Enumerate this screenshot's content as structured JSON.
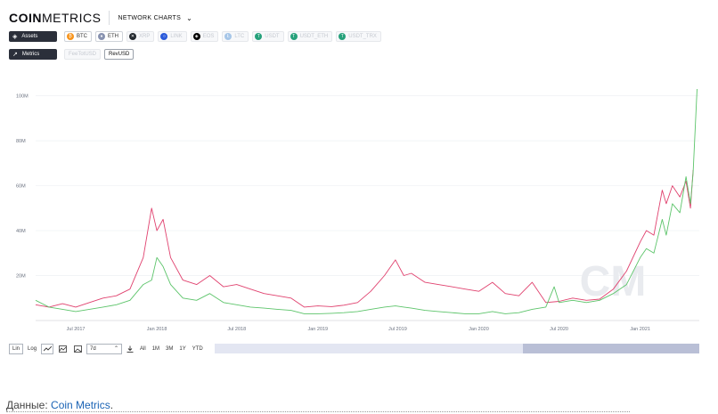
{
  "header": {
    "logo_bold": "COIN",
    "logo_rest": "METRICS",
    "nav_label": "NETWORK CHARTS"
  },
  "assets": {
    "label": "Assets",
    "items": [
      {
        "label": "BTC",
        "color": "#f7931a",
        "glyph": "₿",
        "enabled": true
      },
      {
        "label": "ETH",
        "color": "#8892b0",
        "glyph": "♦",
        "enabled": true
      },
      {
        "label": "XRP",
        "color": "#23292f",
        "glyph": "✕",
        "enabled": false
      },
      {
        "label": "LINK",
        "color": "#2a5ada",
        "glyph": "○",
        "enabled": false
      },
      {
        "label": "EOS",
        "color": "#000000",
        "glyph": "◈",
        "enabled": false
      },
      {
        "label": "LTC",
        "color": "#a6c6e8",
        "glyph": "Ł",
        "enabled": false
      },
      {
        "label": "USDT",
        "color": "#26a17b",
        "glyph": "T",
        "enabled": false
      },
      {
        "label": "USDT_ETH",
        "color": "#26a17b",
        "glyph": "T",
        "enabled": false
      },
      {
        "label": "USDT_TRX",
        "color": "#26a17b",
        "glyph": "T",
        "enabled": false
      }
    ]
  },
  "metrics": {
    "label": "Metrics",
    "items": [
      {
        "label": "FeeTotUSD",
        "enabled": false
      },
      {
        "label": "RevUSD",
        "enabled": true
      }
    ]
  },
  "toolbar": {
    "scale_lin": "Lin",
    "scale_log": "Log",
    "ma_value": "7d",
    "ranges": [
      "All",
      "1M",
      "3M",
      "1Y",
      "YTD"
    ]
  },
  "footer": {
    "prefix": "Данные: ",
    "link": "Coin Metrics",
    "suffix": "."
  },
  "chart_data": {
    "type": "line",
    "x_type": "date",
    "x_range": [
      "2017-04-01",
      "2021-05-15"
    ],
    "ylim": [
      0,
      105000000
    ],
    "yticks": [
      20000000,
      40000000,
      60000000,
      80000000,
      100000000
    ],
    "ytick_labels": [
      "20M",
      "40M",
      "60M",
      "80M",
      "100M"
    ],
    "xticks": [
      "2017-07-01",
      "2018-01-01",
      "2018-07-01",
      "2019-01-01",
      "2019-07-01",
      "2020-01-01",
      "2020-07-01",
      "2021-01-01"
    ],
    "xtick_labels": [
      "Jul 2017",
      "Jan 2018",
      "Jul 2018",
      "Jan 2019",
      "Jul 2019",
      "Jan 2020",
      "Jul 2020",
      "Jan 2021"
    ],
    "series": [
      {
        "color": "#e0416e",
        "points": [
          [
            "2017-04-01",
            7000000
          ],
          [
            "2017-05-01",
            6000000
          ],
          [
            "2017-06-01",
            7500000
          ],
          [
            "2017-07-01",
            6000000
          ],
          [
            "2017-08-01",
            8000000
          ],
          [
            "2017-09-01",
            10000000
          ],
          [
            "2017-10-01",
            11000000
          ],
          [
            "2017-11-01",
            14000000
          ],
          [
            "2017-12-01",
            28000000
          ],
          [
            "2017-12-20",
            50000000
          ],
          [
            "2018-01-01",
            40000000
          ],
          [
            "2018-01-15",
            45000000
          ],
          [
            "2018-02-01",
            28000000
          ],
          [
            "2018-03-01",
            18000000
          ],
          [
            "2018-04-01",
            16000000
          ],
          [
            "2018-05-01",
            20000000
          ],
          [
            "2018-06-01",
            15000000
          ],
          [
            "2018-07-01",
            16000000
          ],
          [
            "2018-08-01",
            14000000
          ],
          [
            "2018-09-01",
            12000000
          ],
          [
            "2018-10-01",
            11000000
          ],
          [
            "2018-11-01",
            10000000
          ],
          [
            "2018-12-01",
            6000000
          ],
          [
            "2019-01-01",
            6500000
          ],
          [
            "2019-02-01",
            6200000
          ],
          [
            "2019-03-01",
            6800000
          ],
          [
            "2019-04-01",
            8000000
          ],
          [
            "2019-05-01",
            13000000
          ],
          [
            "2019-06-01",
            20000000
          ],
          [
            "2019-06-26",
            27000000
          ],
          [
            "2019-07-15",
            20000000
          ],
          [
            "2019-08-01",
            21000000
          ],
          [
            "2019-09-01",
            17000000
          ],
          [
            "2019-10-01",
            16000000
          ],
          [
            "2019-11-01",
            15000000
          ],
          [
            "2019-12-01",
            14000000
          ],
          [
            "2020-01-01",
            13000000
          ],
          [
            "2020-02-01",
            17000000
          ],
          [
            "2020-03-01",
            12000000
          ],
          [
            "2020-04-01",
            11000000
          ],
          [
            "2020-05-01",
            17000000
          ],
          [
            "2020-06-01",
            8000000
          ],
          [
            "2020-07-01",
            8500000
          ],
          [
            "2020-08-01",
            10000000
          ],
          [
            "2020-09-01",
            9000000
          ],
          [
            "2020-10-01",
            9500000
          ],
          [
            "2020-11-01",
            14000000
          ],
          [
            "2020-12-01",
            22000000
          ],
          [
            "2021-01-01",
            35000000
          ],
          [
            "2021-01-15",
            40000000
          ],
          [
            "2021-02-01",
            38000000
          ],
          [
            "2021-02-20",
            58000000
          ],
          [
            "2021-03-01",
            52000000
          ],
          [
            "2021-03-15",
            60000000
          ],
          [
            "2021-04-01",
            55000000
          ],
          [
            "2021-04-15",
            62000000
          ],
          [
            "2021-04-25",
            50000000
          ],
          [
            "2021-05-01",
            67000000
          ]
        ]
      },
      {
        "color": "#5cc46a",
        "points": [
          [
            "2017-04-01",
            9000000
          ],
          [
            "2017-05-01",
            6000000
          ],
          [
            "2017-06-01",
            5000000
          ],
          [
            "2017-07-01",
            4000000
          ],
          [
            "2017-08-01",
            5000000
          ],
          [
            "2017-09-01",
            6000000
          ],
          [
            "2017-10-01",
            7000000
          ],
          [
            "2017-11-01",
            9000000
          ],
          [
            "2017-12-01",
            16000000
          ],
          [
            "2017-12-20",
            18000000
          ],
          [
            "2018-01-01",
            28000000
          ],
          [
            "2018-01-15",
            24000000
          ],
          [
            "2018-02-01",
            16000000
          ],
          [
            "2018-03-01",
            10000000
          ],
          [
            "2018-04-01",
            9000000
          ],
          [
            "2018-05-01",
            12000000
          ],
          [
            "2018-06-01",
            8000000
          ],
          [
            "2018-07-01",
            7000000
          ],
          [
            "2018-08-01",
            6000000
          ],
          [
            "2018-09-01",
            5500000
          ],
          [
            "2018-10-01",
            5000000
          ],
          [
            "2018-11-01",
            4500000
          ],
          [
            "2018-12-01",
            3000000
          ],
          [
            "2019-01-01",
            3000000
          ],
          [
            "2019-02-01",
            3200000
          ],
          [
            "2019-03-01",
            3500000
          ],
          [
            "2019-04-01",
            4000000
          ],
          [
            "2019-05-01",
            5000000
          ],
          [
            "2019-06-01",
            6000000
          ],
          [
            "2019-06-26",
            6500000
          ],
          [
            "2019-07-15",
            6000000
          ],
          [
            "2019-08-01",
            5500000
          ],
          [
            "2019-09-01",
            4500000
          ],
          [
            "2019-10-01",
            4000000
          ],
          [
            "2019-11-01",
            3500000
          ],
          [
            "2019-12-01",
            3000000
          ],
          [
            "2020-01-01",
            3000000
          ],
          [
            "2020-02-01",
            4000000
          ],
          [
            "2020-03-01",
            3000000
          ],
          [
            "2020-04-01",
            3500000
          ],
          [
            "2020-05-01",
            5000000
          ],
          [
            "2020-06-01",
            6000000
          ],
          [
            "2020-06-20",
            15000000
          ],
          [
            "2020-07-01",
            8000000
          ],
          [
            "2020-08-01",
            9000000
          ],
          [
            "2020-09-01",
            8000000
          ],
          [
            "2020-10-01",
            9000000
          ],
          [
            "2020-11-01",
            12000000
          ],
          [
            "2020-12-01",
            16000000
          ],
          [
            "2021-01-01",
            28000000
          ],
          [
            "2021-01-15",
            32000000
          ],
          [
            "2021-02-01",
            30000000
          ],
          [
            "2021-02-20",
            45000000
          ],
          [
            "2021-03-01",
            38000000
          ],
          [
            "2021-03-15",
            52000000
          ],
          [
            "2021-04-01",
            48000000
          ],
          [
            "2021-04-15",
            64000000
          ],
          [
            "2021-04-25",
            52000000
          ],
          [
            "2021-05-01",
            66000000
          ],
          [
            "2021-05-10",
            103000000
          ]
        ]
      }
    ]
  }
}
